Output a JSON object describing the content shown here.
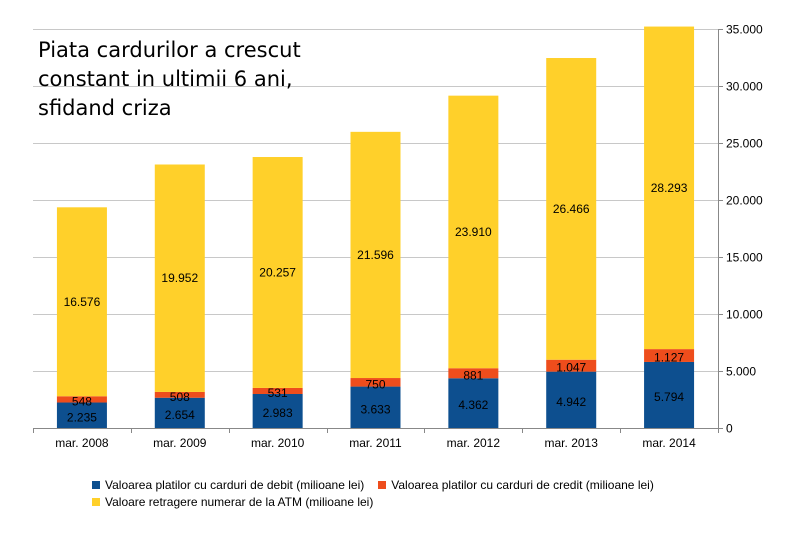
{
  "title_lines": [
    "Piata cardurilor a crescut",
    "constant in ultimii 6 ani,",
    "sfidand criza"
  ],
  "chart_data": {
    "type": "bar",
    "stacked": true,
    "title": "Piata cardurilor a crescut constant in ultimii 6 ani, sfidand criza",
    "categories": [
      "mar. 2008",
      "mar. 2009",
      "mar. 2010",
      "mar. 2011",
      "mar. 2012",
      "mar. 2013",
      "mar. 2014"
    ],
    "series": [
      {
        "name": "Valoarea platilor cu carduri de debit (milioane lei)",
        "color": "#0d4f8f",
        "values": [
          2235,
          2654,
          2983,
          3633,
          4362,
          4942,
          5794
        ],
        "labels": [
          "2.235",
          "2.654",
          "2.983",
          "3.633",
          "4.362",
          "4.942",
          "5.794"
        ]
      },
      {
        "name": "Valoarea platilor cu carduri de credit (milioane lei)",
        "color": "#ee4d1c",
        "values": [
          548,
          508,
          531,
          750,
          881,
          1047,
          1127
        ],
        "labels": [
          "548",
          "508",
          "531",
          "750",
          "881",
          "1.047",
          "1.127"
        ]
      },
      {
        "name": "Valoare retragere numerar de la ATM (milioane lei)",
        "color": "#ffd02a",
        "values": [
          16576,
          19952,
          20257,
          21596,
          23910,
          26466,
          28293
        ],
        "labels": [
          "16.576",
          "19.952",
          "20.257",
          "21.596",
          "23.910",
          "26.466",
          "28.293"
        ]
      }
    ],
    "ylim": [
      0,
      35000
    ],
    "yticks": [
      0,
      5000,
      10000,
      15000,
      20000,
      25000,
      30000,
      35000
    ],
    "ytick_labels": [
      "0",
      "5.000",
      "10.000",
      "15.000",
      "20.000",
      "25.000",
      "30.000",
      "35.000"
    ],
    "y_axis_side": "right",
    "grid": true,
    "legend_position": "bottom"
  }
}
